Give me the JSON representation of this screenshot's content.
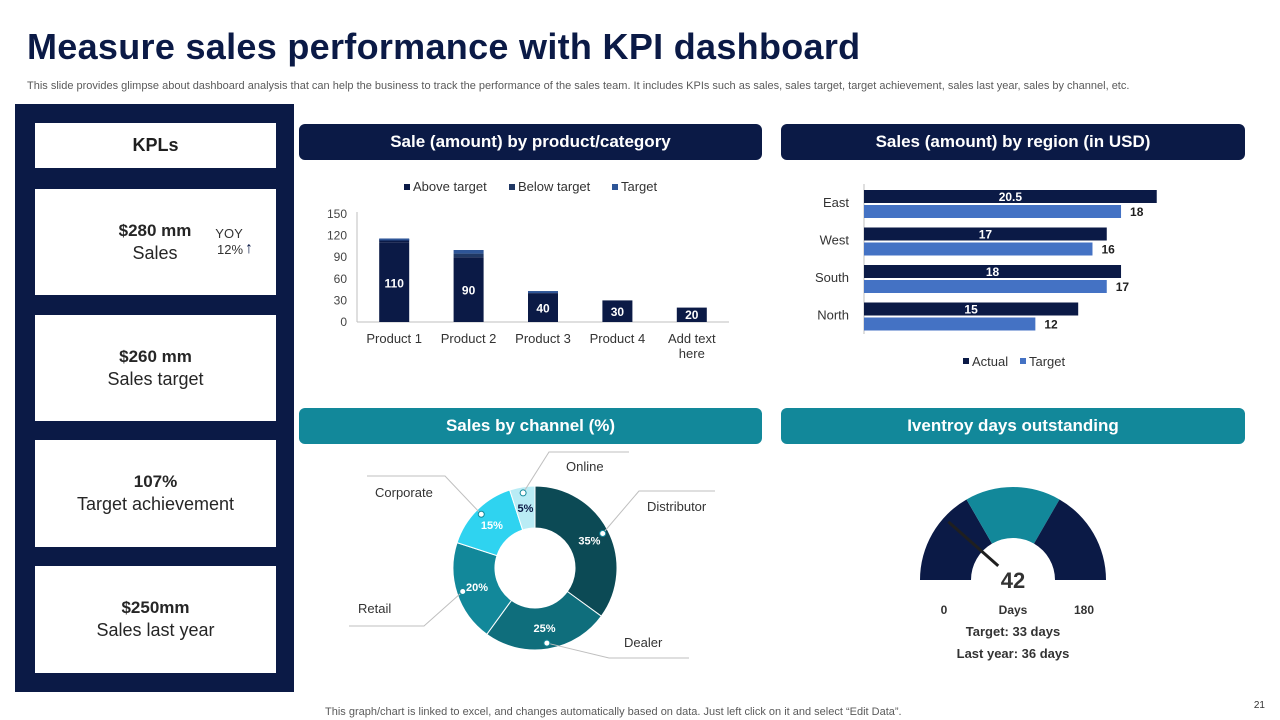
{
  "page": {
    "title": "Measure sales performance with KPI dashboard",
    "subtitle": "This slide provides glimpse about dashboard analysis that can help the business to track the performance of the sales team. It includes KPIs such as sales, sales target, target achievement, sales last year, sales by channel, etc.",
    "footnote": "This graph/chart is linked to excel,  and changes automatically based on data. Just left click on it and select “Edit Data”.",
    "page_number": "21"
  },
  "kpis": {
    "header": "KPLs",
    "sales": {
      "value": "$280 mm",
      "label": "Sales",
      "yoy_label": "YOY",
      "yoy_value": "12%",
      "yoy_arrow": "↑"
    },
    "target": {
      "value": "$260 mm",
      "label": "Sales target"
    },
    "achievement": {
      "value": "107%",
      "label": "Target achievement"
    },
    "last_year": {
      "value": "$250mm",
      "label": "Sales last year"
    }
  },
  "panels": {
    "product": "Sale (amount) by product/category",
    "region": "Sales (amount) by region (in USD)",
    "channel": "Sales by channel (%)",
    "inventory": "Iventroy days outstanding"
  },
  "colors": {
    "navy": "#0b1a46",
    "teal": "#12889a",
    "blue": "#4472c4",
    "below": "#203864",
    "target_marker": "#2e5597"
  },
  "chart_data": [
    {
      "id": "product",
      "type": "bar",
      "legend": [
        "Above target",
        "Below target",
        "Target"
      ],
      "categories": [
        "Product 1",
        "Product 2",
        "Product 3",
        "Product 4",
        "Add text here"
      ],
      "values": [
        110,
        90,
        40,
        30,
        20
      ],
      "above_extra": [
        5,
        0,
        2,
        0,
        0
      ],
      "below_extra": [
        0,
        5,
        0,
        0,
        0
      ],
      "target_extra": [
        1,
        5,
        1,
        0,
        0
      ],
      "ylim": [
        0,
        150
      ],
      "yticks": [
        0,
        30,
        60,
        90,
        120,
        150
      ]
    },
    {
      "id": "region",
      "type": "bar",
      "orientation": "horizontal",
      "categories": [
        "East",
        "West",
        "South",
        "North"
      ],
      "series": [
        {
          "name": "Actual",
          "values": [
            20.5,
            17,
            18,
            15
          ]
        },
        {
          "name": "Target",
          "values": [
            18,
            16,
            17,
            12
          ]
        }
      ],
      "xlim": [
        0,
        25
      ]
    },
    {
      "id": "channel",
      "type": "pie",
      "donut": true,
      "slices": [
        {
          "label": "Distributor",
          "value": 35,
          "display": "35%",
          "color": "#0c4a55"
        },
        {
          "label": "Dealer",
          "value": 25,
          "display": "25%",
          "color": "#0f6e7c"
        },
        {
          "label": "Retail",
          "value": 20,
          "display": "20%",
          "color": "#12889a"
        },
        {
          "label": "Corporate",
          "value": 15,
          "display": "15%",
          "color": "#2fd3f0"
        },
        {
          "label": "Online",
          "value": 5,
          "display": "5%",
          "color": "#b9ecf5"
        }
      ]
    },
    {
      "id": "inventory",
      "type": "gauge",
      "value": 42,
      "min": 0,
      "max": 180,
      "unit": "Days",
      "min_label": "0",
      "max_label": "180",
      "value_label": "42",
      "bands": [
        60,
        120,
        180
      ],
      "band_colors": [
        "#0b1a46",
        "#12889a",
        "#0b1a46"
      ],
      "target_text": "Target: 33 days",
      "last_year_text": "Last year: 36 days"
    }
  ]
}
